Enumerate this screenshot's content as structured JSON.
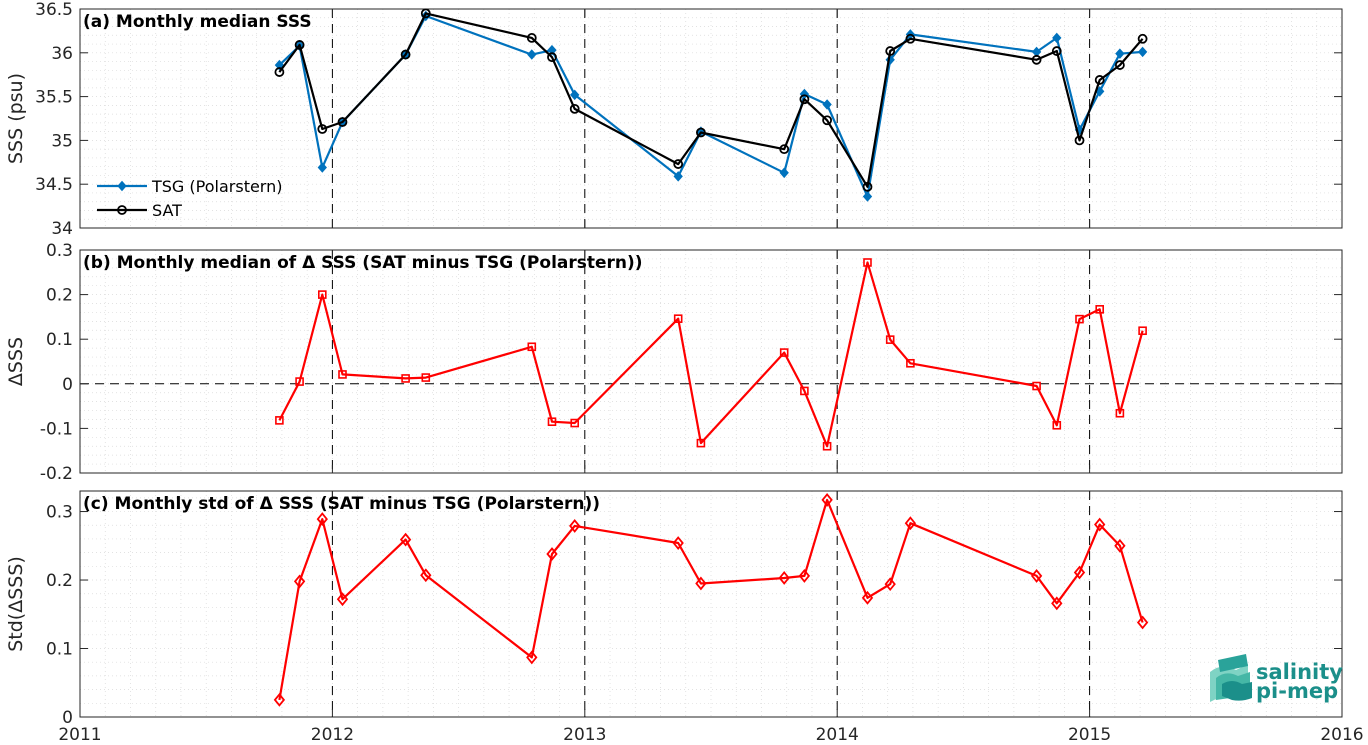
{
  "colors": {
    "tsg": "#0072BD",
    "sat": "#000000",
    "diff": "#FF0000",
    "logo": "#1b8f8a"
  },
  "logo": {
    "line1": "salinity",
    "line2": "pi-mep"
  },
  "x_tick_labels": [
    "2011",
    "2012",
    "2013",
    "2014",
    "2015",
    "2016"
  ],
  "chart_data": [
    {
      "type": "line",
      "title": "(a) Monthly median SSS",
      "ylabel": "SSS (psu)",
      "xlim": [
        2011,
        2016
      ],
      "ylim": [
        34,
        36.5
      ],
      "yticks": [
        34,
        34.5,
        35,
        35.5,
        36,
        36.5
      ],
      "ytick_labels": [
        "34",
        "34.5",
        "35",
        "35.5",
        "36",
        "36.5"
      ],
      "grid": true,
      "legend_position": "bottom-left",
      "series": [
        {
          "name": "TSG (Polarstern)",
          "marker": "filled-diamond",
          "x": [
            2011.79,
            2011.87,
            2011.96,
            2012.04,
            2012.29,
            2012.37,
            2012.79,
            2012.87,
            2012.96,
            2013.37,
            2013.46,
            2013.79,
            2013.87,
            2013.96,
            2014.12,
            2014.21,
            2014.29,
            2014.79,
            2014.87,
            2014.96,
            2015.04,
            2015.12,
            2015.21
          ],
          "y": [
            35.86,
            36.08,
            34.69,
            35.21,
            35.98,
            36.42,
            35.98,
            36.03,
            35.52,
            34.59,
            35.1,
            34.63,
            35.53,
            35.41,
            34.36,
            35.92,
            36.21,
            36.01,
            36.17,
            35.12,
            35.56,
            35.99,
            36.01
          ]
        },
        {
          "name": "SAT",
          "marker": "open-circle",
          "x": [
            2011.79,
            2011.87,
            2011.96,
            2012.04,
            2012.29,
            2012.37,
            2012.79,
            2012.87,
            2012.96,
            2013.37,
            2013.46,
            2013.79,
            2013.87,
            2013.96,
            2014.12,
            2014.21,
            2014.29,
            2014.79,
            2014.87,
            2014.96,
            2015.04,
            2015.12,
            2015.21
          ],
          "y": [
            35.78,
            36.09,
            35.13,
            35.21,
            35.98,
            36.45,
            36.17,
            35.95,
            35.36,
            34.73,
            35.09,
            34.9,
            35.47,
            35.23,
            34.47,
            36.02,
            36.16,
            35.92,
            36.02,
            35.0,
            35.69,
            35.86,
            36.16
          ]
        }
      ]
    },
    {
      "type": "line",
      "title": "(b) Monthly median of Δ SSS (SAT minus TSG (Polarstern))",
      "ylabel": "ΔSSS",
      "xlim": [
        2011,
        2016
      ],
      "ylim": [
        -0.2,
        0.3
      ],
      "yticks": [
        -0.2,
        -0.1,
        0,
        0.1,
        0.2,
        0.3
      ],
      "ytick_labels": [
        "-0.2",
        "-0.1",
        "0",
        "0.1",
        "0.2",
        "0.3"
      ],
      "grid": true,
      "zero_line": true,
      "series": [
        {
          "marker": "open-square",
          "x": [
            2011.79,
            2011.87,
            2011.96,
            2012.04,
            2012.29,
            2012.37,
            2012.79,
            2012.87,
            2012.96,
            2013.37,
            2013.46,
            2013.79,
            2013.87,
            2013.96,
            2014.12,
            2014.21,
            2014.29,
            2014.79,
            2014.87,
            2014.96,
            2015.04,
            2015.12,
            2015.21
          ],
          "y": [
            -0.082,
            0.005,
            0.2,
            0.021,
            0.012,
            0.014,
            0.083,
            -0.085,
            -0.088,
            0.146,
            -0.133,
            0.07,
            -0.016,
            -0.14,
            0.272,
            0.099,
            0.046,
            -0.005,
            -0.093,
            0.145,
            0.167,
            -0.066,
            0.119
          ]
        }
      ]
    },
    {
      "type": "line",
      "title": "(c) Monthly std of Δ SSS (SAT minus TSG (Polarstern))",
      "ylabel": "Std(ΔSSS)",
      "xlim": [
        2011,
        2016
      ],
      "ylim": [
        0,
        0.33
      ],
      "yticks": [
        0,
        0.1,
        0.2,
        0.3
      ],
      "ytick_labels": [
        "0",
        "0.1",
        "0.2",
        "0.3"
      ],
      "grid": true,
      "series": [
        {
          "marker": "open-diamond",
          "x": [
            2011.79,
            2011.87,
            2011.96,
            2012.04,
            2012.29,
            2012.37,
            2012.79,
            2012.87,
            2012.96,
            2013.37,
            2013.46,
            2013.79,
            2013.87,
            2013.96,
            2014.12,
            2014.21,
            2014.29,
            2014.79,
            2014.87,
            2014.96,
            2015.04,
            2015.12,
            2015.21
          ],
          "y": [
            0.025,
            0.198,
            0.289,
            0.172,
            0.259,
            0.207,
            0.087,
            0.238,
            0.279,
            0.254,
            0.195,
            0.203,
            0.206,
            0.317,
            0.174,
            0.194,
            0.283,
            0.206,
            0.166,
            0.211,
            0.281,
            0.25,
            0.138
          ]
        }
      ]
    }
  ]
}
